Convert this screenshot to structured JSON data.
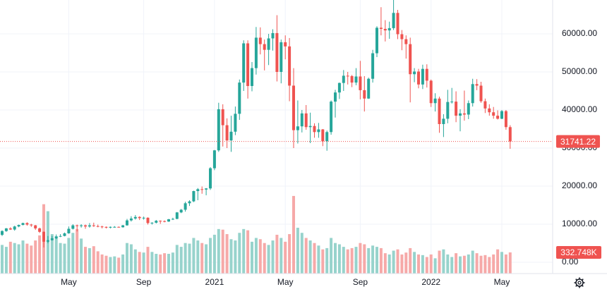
{
  "chart_data": {
    "type": "candlestick",
    "categories": [
      null,
      null,
      null,
      null,
      null,
      null,
      null,
      null,
      null,
      null,
      null,
      null,
      null,
      null,
      null,
      null,
      "May",
      null,
      null,
      null,
      null,
      null,
      null,
      null,
      null,
      null,
      null,
      null,
      null,
      null,
      null,
      null,
      null,
      null,
      "Sep",
      null,
      null,
      null,
      null,
      null,
      null,
      null,
      null,
      null,
      null,
      null,
      null,
      null,
      null,
      null,
      null,
      "2021",
      null,
      null,
      null,
      null,
      null,
      null,
      null,
      null,
      null,
      null,
      null,
      null,
      null,
      null,
      null,
      null,
      "May",
      null,
      null,
      null,
      null,
      null,
      null,
      null,
      null,
      null,
      null,
      null,
      null,
      null,
      null,
      null,
      null,
      null,
      "Sep",
      null,
      null,
      null,
      null,
      null,
      null,
      null,
      null,
      null,
      null,
      null,
      null,
      null,
      null,
      null,
      null,
      "2022",
      null,
      null,
      null,
      null,
      null,
      null,
      null,
      null,
      null,
      null,
      null,
      null,
      null,
      null,
      null,
      null,
      "May",
      null,
      null
    ],
    "open": [
      7200,
      8200,
      8900,
      8600,
      9400,
      9800,
      10300,
      9900,
      9700,
      8900,
      8000,
      5400,
      5800,
      6300,
      6800,
      6900,
      7600,
      8800,
      9700,
      9500,
      9700,
      9400,
      9700,
      9500,
      9400,
      9300,
      9100,
      9300,
      9300,
      9200,
      9700,
      11000,
      11500,
      11900,
      11600,
      11700,
      10300,
      10400,
      10900,
      10800,
      10700,
      11300,
      11400,
      13100,
      13800,
      15500,
      16000,
      18700,
      19200,
      19100,
      19400,
      24700,
      29400,
      40200,
      36000,
      32000,
      34300,
      39000,
      47200,
      57500,
      46300,
      51000,
      59000,
      57300,
      55800,
      58800,
      60200,
      50000,
      57800,
      56700,
      46400,
      34700,
      35700,
      39100,
      35500,
      35800,
      34200,
      34900,
      31800,
      34200,
      42200,
      44600,
      47100,
      49000,
      48900,
      47200,
      48800,
      45200,
      43000,
      48200,
      54900,
      61600,
      61300,
      60900,
      61500,
      65500,
      59900,
      58600,
      57300,
      49400,
      50100,
      46700,
      50800,
      47700,
      41800,
      43000,
      36300,
      37700,
      42100,
      42200,
      38500,
      39100,
      38800,
      41800,
      46800,
      46400,
      42300,
      40400,
      39400,
      38500,
      37700,
      39700,
      35500
    ],
    "high": [
      8400,
      9000,
      9200,
      9600,
      9900,
      10400,
      10500,
      10100,
      9800,
      9100,
      8100,
      6900,
      6900,
      7300,
      7400,
      7800,
      9400,
      10000,
      9900,
      10000,
      9900,
      10300,
      10400,
      9900,
      9600,
      9400,
      9400,
      9500,
      9400,
      9800,
      11400,
      12100,
      12400,
      12100,
      12000,
      11800,
      10500,
      11100,
      11000,
      11000,
      11400,
      11700,
      13200,
      14000,
      15900,
      16300,
      18800,
      19500,
      19900,
      19500,
      25000,
      29500,
      41900,
      41500,
      37800,
      38500,
      40900,
      48000,
      58300,
      58300,
      52600,
      61800,
      61700,
      58500,
      60000,
      61200,
      64900,
      58500,
      59600,
      58900,
      51000,
      42500,
      40000,
      41300,
      39300,
      36500,
      36600,
      35000,
      34600,
      42500,
      45300,
      47200,
      50500,
      50000,
      49200,
      51000,
      52900,
      48900,
      48500,
      55800,
      62000,
      67000,
      63600,
      63200,
      69000,
      66300,
      61000,
      59600,
      59000,
      51000,
      50800,
      51900,
      52000,
      48000,
      44400,
      43500,
      38900,
      45300,
      45800,
      44900,
      40200,
      45100,
      42500,
      48200,
      48100,
      47400,
      43000,
      41500,
      40800,
      39900,
      40000,
      40000,
      36000
    ],
    "low": [
      6900,
      8000,
      8500,
      8300,
      9200,
      9700,
      9600,
      9300,
      8500,
      7700,
      3900,
      5000,
      5700,
      6100,
      6600,
      6800,
      7500,
      8600,
      8100,
      9100,
      8800,
      9100,
      9300,
      9200,
      8900,
      8900,
      8900,
      9100,
      9100,
      9100,
      9600,
      10700,
      11200,
      11100,
      11200,
      9900,
      9900,
      10200,
      10100,
      10500,
      10600,
      11100,
      11300,
      12900,
      13300,
      14800,
      15800,
      16300,
      18000,
      17600,
      19000,
      24200,
      29000,
      30400,
      30000,
      29000,
      33400,
      37400,
      45000,
      43000,
      44900,
      49300,
      54600,
      50400,
      51800,
      55600,
      47500,
      47000,
      53300,
      42300,
      30000,
      31200,
      34100,
      34800,
      31300,
      32700,
      32700,
      30500,
      29300,
      33500,
      38000,
      42900,
      45000,
      46700,
      46000,
      46500,
      42800,
      39600,
      42900,
      47200,
      53900,
      59600,
      58000,
      58700,
      61000,
      58600,
      55700,
      53500,
      42000,
      47300,
      45700,
      45500,
      45900,
      40800,
      39600,
      34000,
      32900,
      36500,
      41700,
      36800,
      34400,
      37200,
      37600,
      40900,
      45200,
      41900,
      39200,
      38500,
      37700,
      37500,
      37600,
      34800,
      29800
    ],
    "close": [
      8200,
      8900,
      8600,
      9400,
      9800,
      10300,
      9900,
      9700,
      8900,
      8000,
      5400,
      5800,
      6300,
      6800,
      6900,
      7600,
      8800,
      9700,
      9500,
      9700,
      9400,
      9700,
      9500,
      9400,
      9300,
      9100,
      9300,
      9300,
      9200,
      9700,
      11000,
      11500,
      11900,
      11600,
      11700,
      10300,
      10400,
      10900,
      10800,
      10700,
      11300,
      11400,
      13100,
      13800,
      15500,
      16000,
      18700,
      19200,
      19100,
      19400,
      24700,
      29400,
      40200,
      36000,
      32000,
      34300,
      39000,
      47200,
      57500,
      46300,
      51000,
      59000,
      57300,
      55800,
      58800,
      60200,
      50000,
      57800,
      56700,
      46400,
      34700,
      35700,
      39100,
      35500,
      35800,
      34200,
      34900,
      31800,
      34200,
      42200,
      44600,
      47100,
      49000,
      48900,
      47200,
      48800,
      45200,
      43000,
      48200,
      54900,
      61600,
      61300,
      60900,
      61500,
      65500,
      59900,
      58600,
      57300,
      49400,
      50100,
      46700,
      50800,
      47700,
      41800,
      43000,
      36300,
      37700,
      42100,
      42200,
      38500,
      39100,
      38800,
      41800,
      46800,
      46400,
      42300,
      40400,
      39400,
      38500,
      37700,
      39700,
      35500,
      31741.22
    ],
    "volume": [
      450000,
      420000,
      500000,
      480000,
      460000,
      520000,
      470000,
      440000,
      520000,
      600000,
      1090000,
      980000,
      620000,
      560000,
      480000,
      470000,
      560000,
      640000,
      700000,
      550000,
      420000,
      400000,
      430000,
      350000,
      300000,
      280000,
      260000,
      270000,
      250000,
      300000,
      480000,
      460000,
      380000,
      340000,
      330000,
      420000,
      340000,
      310000,
      300000,
      320000,
      310000,
      330000,
      450000,
      420000,
      480000,
      470000,
      560000,
      520000,
      480000,
      460000,
      560000,
      610000,
      700000,
      690000,
      620000,
      540000,
      520000,
      640000,
      700000,
      680000,
      500000,
      560000,
      540000,
      480000,
      450000,
      520000,
      610000,
      560000,
      500000,
      620000,
      1220000,
      720000,
      640000,
      560000,
      520000,
      480000,
      440000,
      380000,
      400000,
      560000,
      480000,
      460000,
      420000,
      380000,
      400000,
      420000,
      480000,
      460000,
      400000,
      440000,
      420000,
      400000,
      320000,
      300000,
      360000,
      380000,
      300000,
      330000,
      400000,
      340000,
      300000,
      290000,
      260000,
      300000,
      240000,
      360000,
      380000,
      300000,
      260000,
      320000,
      270000,
      280000,
      300000,
      360000,
      320000,
      280000,
      290000,
      260000,
      300000,
      380000,
      340000,
      300000,
      332748
    ],
    "last_volume_label": "332.748K",
    "up_color": "#26a69a",
    "down_color": "#ef5350",
    "volume_up_color": "#97d3cc",
    "volume_down_color": "#f6a9a8",
    "ylim": [
      -2963,
      68889
    ],
    "yticks": [
      {
        "value": 0,
        "label": "0.00"
      },
      {
        "value": 10000,
        "label": "10000.00"
      },
      {
        "value": 20000,
        "label": "20000.00"
      },
      {
        "value": 30000,
        "label": "30000.00"
      },
      {
        "value": 40000,
        "label": "40000.00"
      },
      {
        "value": 50000,
        "label": "50000.00"
      },
      {
        "value": 60000,
        "label": "60000.00"
      }
    ],
    "volume_ylim": [
      0,
      4300000
    ],
    "grid": true
  }
}
